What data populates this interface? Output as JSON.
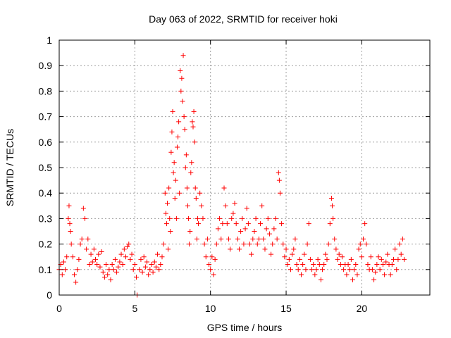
{
  "chart_data": {
    "type": "scatter",
    "title": "Day 063 of 2022, SRMTID for receiver hoki",
    "xlabel": "GPS time / hours",
    "ylabel": "SRMTID / TECUs",
    "xlim": [
      0,
      24.5
    ],
    "ylim": [
      0,
      1
    ],
    "x_ticks": [
      0,
      5,
      10,
      15,
      20
    ],
    "y_ticks": [
      0,
      0.1,
      0.2,
      0.3,
      0.4,
      0.5,
      0.6,
      0.7,
      0.8,
      0.9,
      1
    ],
    "x_tick_labels": [
      "0",
      "5",
      "10",
      "15",
      "20"
    ],
    "y_tick_labels": [
      "0",
      "0.1",
      "0.2",
      "0.3",
      "0.4",
      "0.5",
      "0.6",
      "0.7",
      "0.8",
      "0.9",
      "1"
    ],
    "grid": true,
    "marker": "+",
    "series_color": "#ff0000",
    "series": [
      {
        "name": "SRMTID",
        "points": [
          [
            0.0,
            0.1
          ],
          [
            0.1,
            0.12
          ],
          [
            0.2,
            0.08
          ],
          [
            0.3,
            0.13
          ],
          [
            0.4,
            0.1
          ],
          [
            0.5,
            0.15
          ],
          [
            0.6,
            0.3
          ],
          [
            0.65,
            0.35
          ],
          [
            0.7,
            0.28
          ],
          [
            0.75,
            0.25
          ],
          [
            0.8,
            0.2
          ],
          [
            0.9,
            0.15
          ],
          [
            1.0,
            0.08
          ],
          [
            1.1,
            0.05
          ],
          [
            1.2,
            0.1
          ],
          [
            1.3,
            0.14
          ],
          [
            1.4,
            0.2
          ],
          [
            1.5,
            0.22
          ],
          [
            1.6,
            0.34
          ],
          [
            1.7,
            0.3
          ],
          [
            1.8,
            0.18
          ],
          [
            1.9,
            0.22
          ],
          [
            2.0,
            0.12
          ],
          [
            2.1,
            0.16
          ],
          [
            2.2,
            0.13
          ],
          [
            2.3,
            0.18
          ],
          [
            2.4,
            0.14
          ],
          [
            2.5,
            0.12
          ],
          [
            2.6,
            0.16
          ],
          [
            2.7,
            0.11
          ],
          [
            2.8,
            0.17
          ],
          [
            2.9,
            0.09
          ],
          [
            3.0,
            0.07
          ],
          [
            3.1,
            0.12
          ],
          [
            3.2,
            0.08
          ],
          [
            3.3,
            0.1
          ],
          [
            3.4,
            0.06
          ],
          [
            3.5,
            0.12
          ],
          [
            3.6,
            0.1
          ],
          [
            3.7,
            0.14
          ],
          [
            3.8,
            0.09
          ],
          [
            3.9,
            0.11
          ],
          [
            4.0,
            0.13
          ],
          [
            4.1,
            0.16
          ],
          [
            4.2,
            0.12
          ],
          [
            4.3,
            0.18
          ],
          [
            4.4,
            0.15
          ],
          [
            4.5,
            0.19
          ],
          [
            4.6,
            0.2
          ],
          [
            4.7,
            0.14
          ],
          [
            4.8,
            0.16
          ],
          [
            4.9,
            0.1
          ],
          [
            5.0,
            0.12
          ],
          [
            5.1,
            0.07
          ],
          [
            5.15,
            0.0
          ],
          [
            5.3,
            0.1
          ],
          [
            5.4,
            0.14
          ],
          [
            5.5,
            0.09
          ],
          [
            5.6,
            0.15
          ],
          [
            5.7,
            0.11
          ],
          [
            5.8,
            0.13
          ],
          [
            5.9,
            0.08
          ],
          [
            6.0,
            0.1
          ],
          [
            6.1,
            0.12
          ],
          [
            6.2,
            0.09
          ],
          [
            6.3,
            0.13
          ],
          [
            6.4,
            0.11
          ],
          [
            6.5,
            0.16
          ],
          [
            6.6,
            0.1
          ],
          [
            6.7,
            0.12
          ],
          [
            6.8,
            0.15
          ],
          [
            6.9,
            0.2
          ],
          [
            7.0,
            0.4
          ],
          [
            7.05,
            0.32
          ],
          [
            7.1,
            0.28
          ],
          [
            7.15,
            0.36
          ],
          [
            7.2,
            0.18
          ],
          [
            7.25,
            0.42
          ],
          [
            7.3,
            0.3
          ],
          [
            7.35,
            0.25
          ],
          [
            7.4,
            0.56
          ],
          [
            7.45,
            0.64
          ],
          [
            7.5,
            0.72
          ],
          [
            7.55,
            0.48
          ],
          [
            7.6,
            0.52
          ],
          [
            7.65,
            0.38
          ],
          [
            7.7,
            0.45
          ],
          [
            7.75,
            0.3
          ],
          [
            7.8,
            0.58
          ],
          [
            7.85,
            0.62
          ],
          [
            7.9,
            0.68
          ],
          [
            7.95,
            0.4
          ],
          [
            8.0,
            0.88
          ],
          [
            8.05,
            0.8
          ],
          [
            8.1,
            0.85
          ],
          [
            8.15,
            0.76
          ],
          [
            8.2,
            0.94
          ],
          [
            8.25,
            0.7
          ],
          [
            8.3,
            0.65
          ],
          [
            8.35,
            0.5
          ],
          [
            8.4,
            0.55
          ],
          [
            8.45,
            0.42
          ],
          [
            8.5,
            0.35
          ],
          [
            8.55,
            0.3
          ],
          [
            8.6,
            0.2
          ],
          [
            8.65,
            0.25
          ],
          [
            8.7,
            0.48
          ],
          [
            8.75,
            0.52
          ],
          [
            8.8,
            0.68
          ],
          [
            8.85,
            0.66
          ],
          [
            8.9,
            0.72
          ],
          [
            8.95,
            0.6
          ],
          [
            9.0,
            0.42
          ],
          [
            9.05,
            0.38
          ],
          [
            9.1,
            0.22
          ],
          [
            9.15,
            0.3
          ],
          [
            9.2,
            0.28
          ],
          [
            9.3,
            0.4
          ],
          [
            9.4,
            0.35
          ],
          [
            9.5,
            0.3
          ],
          [
            9.6,
            0.2
          ],
          [
            9.7,
            0.15
          ],
          [
            9.8,
            0.22
          ],
          [
            9.9,
            0.12
          ],
          [
            10.0,
            0.1
          ],
          [
            10.1,
            0.15
          ],
          [
            10.2,
            0.08
          ],
          [
            10.3,
            0.14
          ],
          [
            10.4,
            0.2
          ],
          [
            10.5,
            0.26
          ],
          [
            10.6,
            0.3
          ],
          [
            10.7,
            0.22
          ],
          [
            10.8,
            0.28
          ],
          [
            10.9,
            0.42
          ],
          [
            11.0,
            0.35
          ],
          [
            11.1,
            0.28
          ],
          [
            11.2,
            0.22
          ],
          [
            11.3,
            0.18
          ],
          [
            11.4,
            0.3
          ],
          [
            11.5,
            0.32
          ],
          [
            11.6,
            0.36
          ],
          [
            11.7,
            0.28
          ],
          [
            11.8,
            0.22
          ],
          [
            11.9,
            0.18
          ],
          [
            12.0,
            0.25
          ],
          [
            12.1,
            0.3
          ],
          [
            12.2,
            0.2
          ],
          [
            12.3,
            0.26
          ],
          [
            12.4,
            0.34
          ],
          [
            12.5,
            0.28
          ],
          [
            12.6,
            0.2
          ],
          [
            12.7,
            0.16
          ],
          [
            12.8,
            0.22
          ],
          [
            12.9,
            0.25
          ],
          [
            13.0,
            0.3
          ],
          [
            13.1,
            0.2
          ],
          [
            13.2,
            0.22
          ],
          [
            13.3,
            0.28
          ],
          [
            13.4,
            0.35
          ],
          [
            13.5,
            0.22
          ],
          [
            13.6,
            0.18
          ],
          [
            13.7,
            0.26
          ],
          [
            13.8,
            0.3
          ],
          [
            13.9,
            0.24
          ],
          [
            14.0,
            0.16
          ],
          [
            14.1,
            0.2
          ],
          [
            14.2,
            0.26
          ],
          [
            14.3,
            0.3
          ],
          [
            14.4,
            0.22
          ],
          [
            14.5,
            0.48
          ],
          [
            14.55,
            0.45
          ],
          [
            14.6,
            0.4
          ],
          [
            14.7,
            0.28
          ],
          [
            14.8,
            0.2
          ],
          [
            14.9,
            0.15
          ],
          [
            15.0,
            0.18
          ],
          [
            15.1,
            0.12
          ],
          [
            15.2,
            0.14
          ],
          [
            15.3,
            0.1
          ],
          [
            15.4,
            0.16
          ],
          [
            15.5,
            0.18
          ],
          [
            15.6,
            0.22
          ],
          [
            15.7,
            0.12
          ],
          [
            15.8,
            0.1
          ],
          [
            15.9,
            0.14
          ],
          [
            16.0,
            0.08
          ],
          [
            16.1,
            0.12
          ],
          [
            16.2,
            0.16
          ],
          [
            16.3,
            0.1
          ],
          [
            16.4,
            0.2
          ],
          [
            16.5,
            0.28
          ],
          [
            16.6,
            0.14
          ],
          [
            16.7,
            0.1
          ],
          [
            16.8,
            0.12
          ],
          [
            16.9,
            0.08
          ],
          [
            17.0,
            0.1
          ],
          [
            17.1,
            0.14
          ],
          [
            17.2,
            0.12
          ],
          [
            17.3,
            0.06
          ],
          [
            17.4,
            0.1
          ],
          [
            17.5,
            0.12
          ],
          [
            17.6,
            0.16
          ],
          [
            17.7,
            0.14
          ],
          [
            17.8,
            0.2
          ],
          [
            17.9,
            0.28
          ],
          [
            18.0,
            0.38
          ],
          [
            18.05,
            0.35
          ],
          [
            18.1,
            0.3
          ],
          [
            18.2,
            0.22
          ],
          [
            18.3,
            0.18
          ],
          [
            18.4,
            0.14
          ],
          [
            18.5,
            0.16
          ],
          [
            18.6,
            0.12
          ],
          [
            18.7,
            0.15
          ],
          [
            18.8,
            0.1
          ],
          [
            18.9,
            0.12
          ],
          [
            19.0,
            0.08
          ],
          [
            19.1,
            0.12
          ],
          [
            19.2,
            0.1
          ],
          [
            19.3,
            0.14
          ],
          [
            19.4,
            0.06
          ],
          [
            19.5,
            0.1
          ],
          [
            19.6,
            0.12
          ],
          [
            19.7,
            0.08
          ],
          [
            19.8,
            0.18
          ],
          [
            19.9,
            0.2
          ],
          [
            20.0,
            0.15
          ],
          [
            20.1,
            0.22
          ],
          [
            20.2,
            0.28
          ],
          [
            20.3,
            0.2
          ],
          [
            20.4,
            0.12
          ],
          [
            20.5,
            0.1
          ],
          [
            20.6,
            0.15
          ],
          [
            20.7,
            0.1
          ],
          [
            20.8,
            0.06
          ],
          [
            20.9,
            0.09
          ],
          [
            21.0,
            0.12
          ],
          [
            21.1,
            0.15
          ],
          [
            21.2,
            0.1
          ],
          [
            21.3,
            0.14
          ],
          [
            21.4,
            0.12
          ],
          [
            21.5,
            0.08
          ],
          [
            21.6,
            0.13
          ],
          [
            21.7,
            0.16
          ],
          [
            21.8,
            0.12
          ],
          [
            21.9,
            0.08
          ],
          [
            22.0,
            0.12
          ],
          [
            22.1,
            0.14
          ],
          [
            22.2,
            0.18
          ],
          [
            22.3,
            0.1
          ],
          [
            22.4,
            0.14
          ],
          [
            22.5,
            0.2
          ],
          [
            22.6,
            0.16
          ],
          [
            22.7,
            0.22
          ],
          [
            22.8,
            0.14
          ]
        ]
      }
    ]
  }
}
